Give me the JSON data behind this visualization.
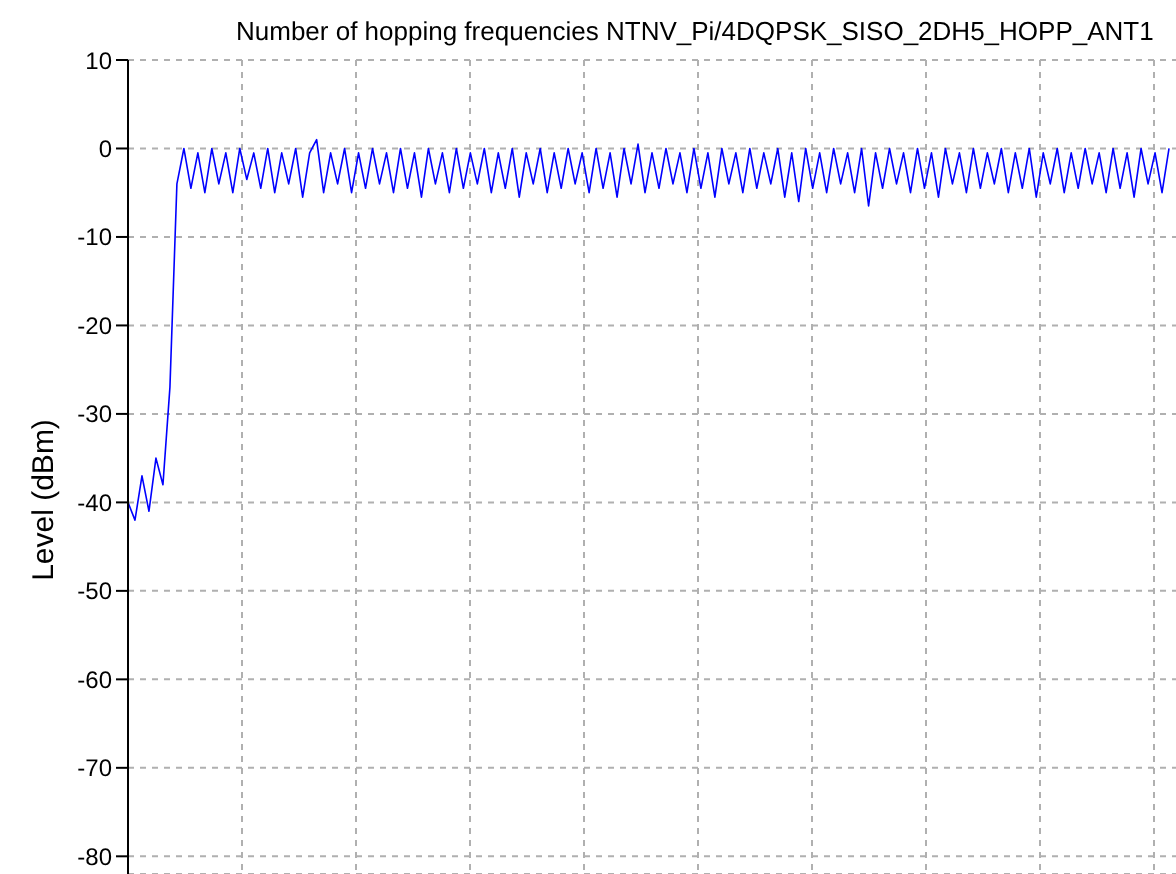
{
  "chart_data": {
    "type": "line",
    "title": "Number of hopping frequencies NTNV_Pi/4DQPSK_SISO_2DH5_HOPP_ANT1",
    "ylabel": "Level (dBm)",
    "categories": [
      null,
      null,
      null,
      null,
      null,
      null,
      null,
      null,
      null,
      null,
      null,
      null,
      null,
      null,
      null,
      null,
      null,
      null,
      null,
      null,
      null,
      null,
      null,
      null,
      null,
      null,
      null,
      null,
      null,
      null,
      null,
      null,
      null,
      null,
      null,
      null,
      null,
      null,
      null,
      null,
      null,
      null,
      null,
      null,
      null,
      null,
      null,
      null,
      null,
      null,
      null,
      null,
      null,
      null,
      null,
      null,
      null,
      null,
      null,
      null,
      null,
      null,
      null,
      null,
      null,
      null,
      null,
      null,
      null,
      null,
      null,
      null,
      null,
      null,
      null,
      null,
      null,
      null,
      null,
      null,
      null,
      null,
      null,
      null,
      null,
      null,
      null,
      null,
      null,
      null,
      null,
      null,
      null,
      null,
      null,
      null,
      null,
      null,
      null,
      null,
      null,
      null,
      null,
      null,
      null,
      null,
      null,
      null,
      null,
      null,
      null,
      null,
      null,
      null,
      null,
      null,
      null,
      null,
      null,
      null,
      null,
      null,
      null,
      null,
      null,
      null,
      null,
      null,
      null,
      null,
      null,
      null,
      null,
      null,
      null,
      null,
      null,
      null,
      null,
      null,
      null,
      null,
      null,
      null,
      null,
      null,
      null,
      null,
      null,
      null
    ],
    "series": [
      {
        "color": "#0000ff",
        "values": [
          -40,
          -42,
          -37,
          -41,
          -35,
          -38,
          -27,
          -4,
          0,
          -4.5,
          -0.5,
          -5,
          0,
          -4,
          -0.5,
          -5,
          0,
          -3.5,
          -0.5,
          -4.5,
          0,
          -5,
          -0.5,
          -4,
          0,
          -5.5,
          -0.5,
          1,
          -5,
          -0.5,
          -4,
          0,
          -5,
          -0.5,
          -4.5,
          0,
          -4,
          -0.5,
          -5,
          0,
          -4.5,
          -0.5,
          -5.5,
          0,
          -4,
          -0.5,
          -5,
          0,
          -4.5,
          -0.5,
          -4,
          0,
          -5,
          -0.5,
          -4.5,
          0,
          -5.5,
          -0.5,
          -4,
          0,
          -5,
          -0.5,
          -4.5,
          0,
          -4,
          -0.5,
          -5,
          0,
          -4.5,
          -0.5,
          -5.5,
          0,
          -4,
          0.5,
          -5,
          -0.5,
          -4.5,
          0,
          -4,
          -0.5,
          -5,
          0,
          -4.5,
          -0.5,
          -5.5,
          0,
          -4,
          -0.5,
          -5,
          0,
          -4.5,
          -0.5,
          -4,
          0,
          -5.5,
          -0.5,
          -6,
          0,
          -4.5,
          -0.5,
          -5,
          0,
          -4,
          -0.5,
          -5,
          0,
          -6.5,
          -0.5,
          -4.5,
          0,
          -4,
          -0.5,
          -5,
          0,
          -4.5,
          -0.5,
          -5.5,
          0,
          -4,
          -0.5,
          -5,
          0,
          -4.5,
          -0.5,
          -4,
          0,
          -5,
          -0.5,
          -4.5,
          0,
          -5.5,
          -0.5,
          -4,
          0,
          -5,
          -0.5,
          -4.5,
          0,
          -4,
          -0.5,
          -5,
          0,
          -4.5,
          -0.5,
          -5.5,
          0,
          -4,
          -0.5,
          -5,
          0
        ]
      }
    ],
    "ylim": [
      -82,
      10
    ],
    "yticks": [
      10,
      0,
      -10,
      -20,
      -30,
      -40,
      -50,
      -60,
      -70,
      -80
    ],
    "grid": true,
    "tick_labels": "y",
    "line_style": "solid",
    "marker": "none"
  }
}
